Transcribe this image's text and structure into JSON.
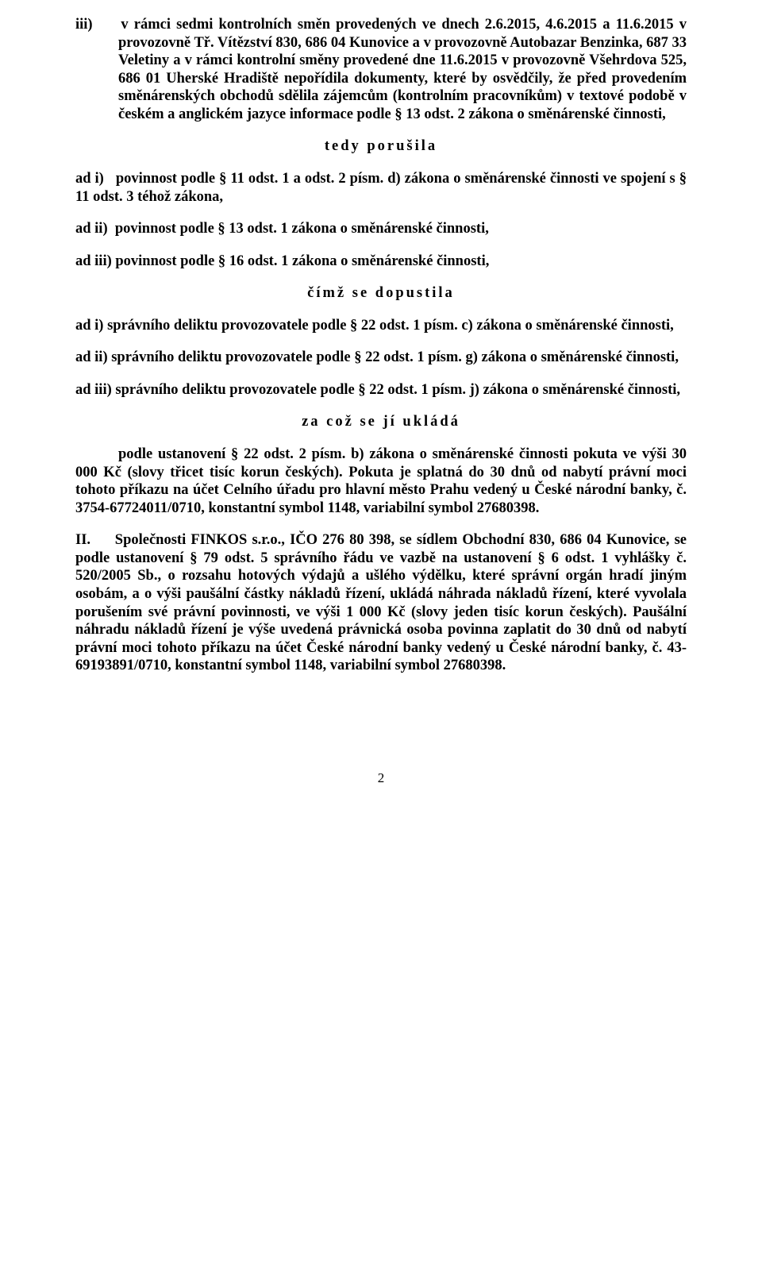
{
  "doc": {
    "iii": "iii)     v rámci sedmi kontrolních směn provedených ve dnech 2.6.2015, 4.6.2015 a 11.6.2015 v provozovně Tř. Vítězství 830, 686 04 Kunovice a v provozovně Autobazar Benzinka, 687 33 Veletiny a v rámci kontrolní směny provedené dne 11.6.2015 v provozovně Všehrdova 525, 686 01 Uherské Hradiště nepořídila dokumenty, které by osvědčily, že před provedením směnárenských obchodů sdělila zájemcům (kontrolním pracovníkům) v textové podobě v českém a anglickém jazyce informace podle § 13 odst. 2 zákona o směnárenské činnosti,",
    "tedy_porusila": "tedy porušila",
    "ad_i": "ad i)   povinnost podle § 11 odst. 1 a odst. 2 písm. d) zákona o směnárenské činnosti ve spojení s § 11 odst. 3 téhož zákona,",
    "ad_ii": "ad ii)  povinnost podle § 13 odst. 1 zákona o směnárenské činnosti,",
    "ad_iii": "ad iii) povinnost podle § 16 odst. 1 zákona o směnárenské činnosti,",
    "cimz": "čímž se dopustila",
    "delikt_i": "ad i) správního deliktu provozovatele podle § 22 odst. 1 písm. c) zákona o směnárenské činnosti,",
    "delikt_ii": "ad ii) správního deliktu provozovatele podle § 22 odst. 1 písm. g) zákona o směnárenské činnosti,",
    "delikt_iii": "ad iii) správního deliktu provozovatele podle § 22 odst. 1 písm. j) zákona o směnárenské činnosti,",
    "za_coz": "za což se jí ukládá",
    "pokuta": "podle ustanovení § 22 odst. 2 písm. b) zákona o směnárenské činnosti pokuta ve výši 30 000 Kč (slovy třicet tisíc korun českých). Pokuta je splatná do 30 dnů od nabytí právní moci tohoto příkazu na účet Celního úřadu pro hlavní město Prahu vedený u České národní banky, č. 3754-67724011/0710, konstantní symbol 1148, variabilní symbol 27680398.",
    "II": "II.     Společnosti FINKOS s.r.o., IČO 276 80 398, se sídlem Obchodní 830, 686 04 Kunovice, se podle ustanovení § 79 odst. 5 správního řádu ve vazbě na ustanovení § 6 odst. 1 vyhlášky č. 520/2005 Sb., o rozsahu hotových výdajů a ušlého výdělku, které správní orgán hradí jiným osobám, a o výši paušální částky nákladů řízení, ukládá náhrada nákladů řízení, které vyvolala porušením své právní povinnosti, ve výši 1 000 Kč (slovy jeden tisíc korun českých). Paušální náhradu nákladů řízení je výše uvedená právnická osoba povinna zaplatit do 30 dnů od nabytí právní moci tohoto příkazu na účet České národní banky vedený u České národní banky, č. 43-69193891/0710, konstantní symbol 1148, variabilní symbol 27680398.",
    "pagenum": "2"
  }
}
